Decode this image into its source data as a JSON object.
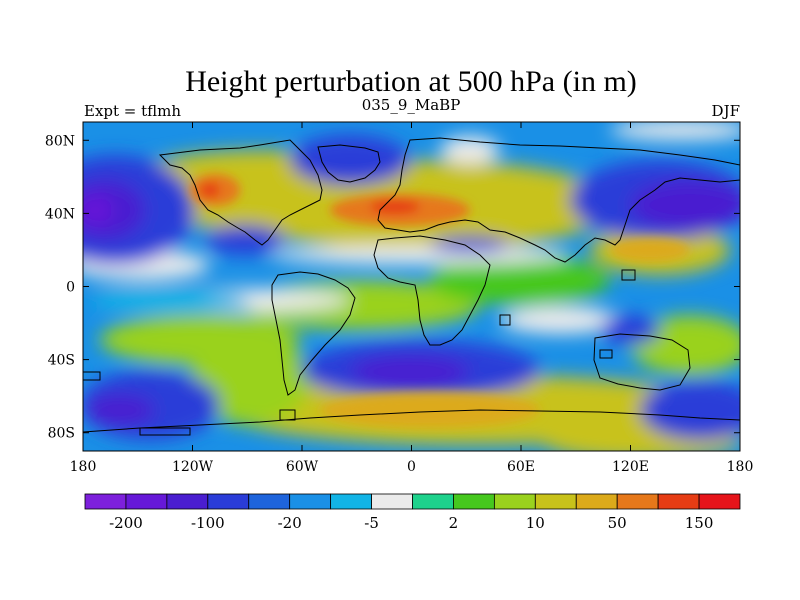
{
  "title": "Height perturbation at 500 hPa (in m)",
  "subtitle_left": "Expt = tflmh",
  "subtitle_center": "035_9_MaBP",
  "subtitle_right": "DJF",
  "map": {
    "projection": "cylindrical-equidistant",
    "lon_range": [
      -180,
      180
    ],
    "lat_range": [
      -90,
      90
    ],
    "lat_ticks": [
      {
        "value": 80,
        "label": "80N"
      },
      {
        "value": 40,
        "label": "40N"
      },
      {
        "value": 0,
        "label": "0"
      },
      {
        "value": -40,
        "label": "40S"
      },
      {
        "value": -80,
        "label": "80S"
      }
    ],
    "lon_ticks": [
      {
        "value": -180,
        "label": "180"
      },
      {
        "value": -120,
        "label": "120W"
      },
      {
        "value": -60,
        "label": "60W"
      },
      {
        "value": 0,
        "label": "0"
      },
      {
        "value": 60,
        "label": "60E"
      },
      {
        "value": 120,
        "label": "120E"
      },
      {
        "value": 180,
        "label": "180"
      }
    ]
  },
  "colorbar": {
    "colors": [
      "#7d20dc",
      "#6618d8",
      "#4a1ed0",
      "#2a3cd8",
      "#1e64dc",
      "#1a90e6",
      "#12b4e6",
      "#ebebeb",
      "#1ed28c",
      "#46c81e",
      "#9ad21e",
      "#c8c21a",
      "#dcaa1a",
      "#e6781a",
      "#e63c14",
      "#e6141a"
    ],
    "labels": [
      {
        "boundary": 1,
        "text": "-200"
      },
      {
        "boundary": 3,
        "text": "-100"
      },
      {
        "boundary": 5,
        "text": "-20"
      },
      {
        "boundary": 7,
        "text": "-5"
      },
      {
        "boundary": 9,
        "text": "2"
      },
      {
        "boundary": 11,
        "text": "10"
      },
      {
        "boundary": 13,
        "text": "50"
      },
      {
        "boundary": 15,
        "text": "150"
      }
    ]
  }
}
